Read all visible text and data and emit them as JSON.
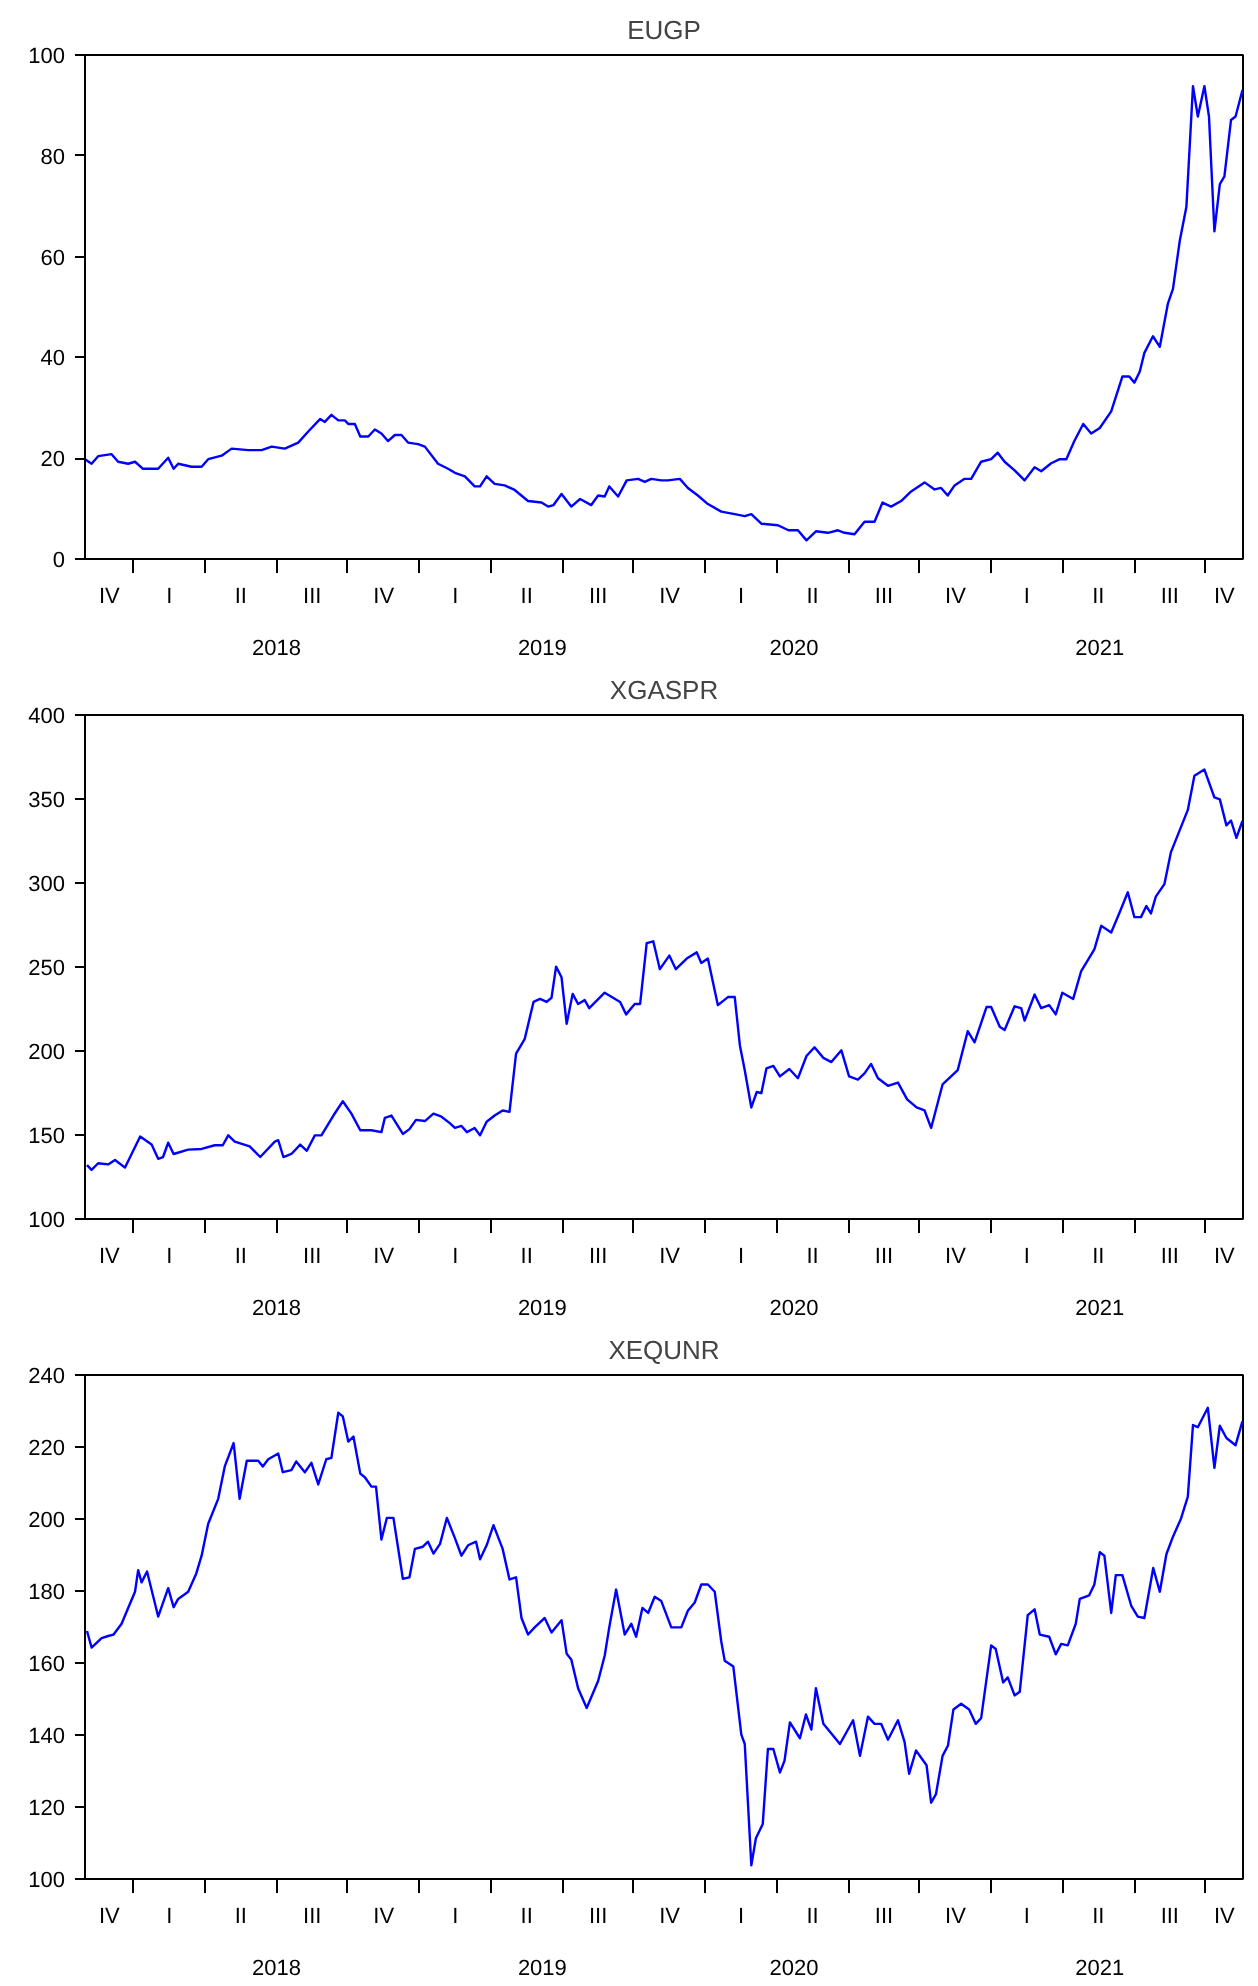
{
  "chart_data": [
    {
      "type": "line",
      "title": "EUGP",
      "color": "#0000ff",
      "grid": false,
      "line_style": "solid",
      "x": [
        2017.83,
        2017.853,
        2017.876,
        2017.923,
        2017.946,
        2017.981,
        2018.005,
        2018.033,
        2018.086,
        2018.121,
        2018.14,
        2018.156,
        2018.203,
        2018.238,
        2018.261,
        2018.308,
        2018.343,
        2018.401,
        2018.448,
        2018.483,
        2018.529,
        2018.576,
        2018.611,
        2018.653,
        2018.669,
        2018.692,
        2018.716,
        2018.739,
        2018.751,
        2018.774,
        2018.793,
        2018.821,
        2018.844,
        2018.867,
        2018.89,
        2018.914,
        2018.937,
        2018.96,
        2018.995,
        2019.019,
        2019.065,
        2019.1,
        2019.124,
        2019.159,
        2019.193,
        2019.212,
        2019.235,
        2019.263,
        2019.298,
        2019.333,
        2019.38,
        2019.427,
        2019.45,
        2019.469,
        2019.497,
        2019.531,
        2019.562,
        2019.601,
        2019.625,
        2019.648,
        2019.664,
        2019.695,
        2019.725,
        2019.765,
        2019.788,
        2019.811,
        2019.846,
        2019.869,
        2019.911,
        2019.939,
        2019.974,
        2020.009,
        2020.056,
        2020.103,
        2020.138,
        2020.161,
        2020.196,
        2020.254,
        2020.291,
        2020.324,
        2020.354,
        2020.387,
        2020.429,
        2020.464,
        2020.487,
        2020.522,
        2020.557,
        2020.592,
        2020.62,
        2020.65,
        2020.685,
        2020.72,
        2020.767,
        2020.802,
        2020.825,
        2020.848,
        2020.872,
        2020.907,
        2020.93,
        2020.965,
        2021.0,
        2021.023,
        2021.047,
        2021.082,
        2021.117,
        2021.152,
        2021.175,
        2021.21,
        2021.24,
        2021.263,
        2021.291,
        2021.322,
        2021.35,
        2021.38,
        2021.42,
        2021.459,
        2021.483,
        2021.501,
        2021.52,
        2021.536,
        2021.566,
        2021.59,
        2021.618,
        2021.636,
        2021.66,
        2021.683,
        2021.706,
        2021.723,
        2021.746,
        2021.762,
        2021.781,
        2021.8,
        2021.816,
        2021.839,
        2021.855,
        2021.879
      ],
      "values": [
        19.8,
        18.9,
        20.4,
        20.8,
        19.3,
        18.9,
        19.3,
        17.9,
        17.9,
        20.1,
        17.9,
        18.9,
        18.3,
        18.3,
        19.8,
        20.5,
        21.9,
        21.6,
        21.6,
        22.3,
        21.9,
        23.1,
        25.3,
        27.8,
        27.2,
        28.6,
        27.5,
        27.5,
        26.8,
        26.8,
        24.3,
        24.3,
        25.7,
        24.9,
        23.4,
        24.6,
        24.6,
        23.1,
        22.8,
        22.3,
        18.9,
        17.9,
        17.1,
        16.4,
        14.4,
        14.4,
        16.4,
        14.9,
        14.6,
        13.7,
        11.5,
        11.2,
        10.4,
        10.7,
        12.9,
        10.4,
        11.9,
        10.7,
        12.6,
        12.4,
        14.4,
        12.4,
        15.6,
        15.9,
        15.3,
        15.9,
        15.6,
        15.6,
        15.9,
        14.1,
        12.6,
        10.9,
        9.4,
        8.9,
        8.5,
        8.9,
        7.0,
        6.7,
        5.7,
        5.7,
        3.7,
        5.5,
        5.2,
        5.7,
        5.2,
        4.9,
        7.4,
        7.4,
        11.2,
        10.4,
        11.5,
        13.4,
        15.2,
        13.8,
        14.1,
        12.6,
        14.6,
        15.9,
        15.9,
        19.3,
        19.8,
        21.1,
        19.3,
        17.6,
        15.6,
        18.2,
        17.4,
        19.0,
        19.8,
        19.8,
        23.4,
        26.8,
        24.9,
        26.0,
        29.3,
        36.2,
        36.2,
        35.0,
        37.2,
        40.9,
        44.2,
        42.1,
        50.6,
        53.6,
        63.2,
        69.9,
        93.8,
        87.8,
        93.8,
        87.8,
        65.0,
        74.4,
        75.9,
        87.1,
        87.8,
        93.0
      ],
      "xlim": [
        2017.83,
        2021.881
      ],
      "ylim": [
        0,
        100
      ],
      "yticks": [
        0,
        20,
        40,
        60,
        80,
        100
      ],
      "xticks": [
        {
          "value": 2018.0,
          "label": null
        },
        {
          "value": 2018.25,
          "label": null
        },
        {
          "value": 2018.5,
          "label": null
        },
        {
          "value": 2018.75,
          "label": null
        },
        {
          "value": 2019.0,
          "label": null
        },
        {
          "value": 2019.25,
          "label": null
        },
        {
          "value": 2019.5,
          "label": null
        },
        {
          "value": 2019.75,
          "label": null
        },
        {
          "value": 2020.0,
          "label": null
        },
        {
          "value": 2020.25,
          "label": null
        },
        {
          "value": 2020.5,
          "label": null
        },
        {
          "value": 2020.75,
          "label": null
        },
        {
          "value": 2021.0,
          "label": null
        },
        {
          "value": 2021.25,
          "label": null
        },
        {
          "value": 2021.5,
          "label": null
        },
        {
          "value": 2021.75,
          "label": null
        },
        {
          "value": 2018.5,
          "label": "2018"
        },
        {
          "value": 2019.43,
          "label": "2019"
        },
        {
          "value": 2020.31,
          "label": "2020"
        },
        {
          "value": 2021.38,
          "label": "2021"
        }
      ],
      "annotations": [
        "IV",
        "I",
        "II",
        "III",
        "IV",
        "I",
        "II",
        "III",
        "IV",
        "I",
        "II",
        "III",
        "IV",
        "I",
        "II",
        "III",
        "IV"
      ]
    },
    {
      "type": "line",
      "title": "XGASPR",
      "color": "#0000ff",
      "grid": false,
      "line_style": "solid",
      "x": [
        2017.837,
        2017.853,
        2017.876,
        2017.911,
        2017.935,
        2017.97,
        2018.023,
        2018.063,
        2018.086,
        2018.103,
        2018.121,
        2018.14,
        2018.191,
        2018.238,
        2018.284,
        2018.312,
        2018.331,
        2018.354,
        2018.406,
        2018.443,
        2018.494,
        2018.506,
        2018.524,
        2018.552,
        2018.583,
        2018.606,
        2018.634,
        2018.657,
        2018.699,
        2018.732,
        2018.762,
        2018.793,
        2018.832,
        2018.867,
        2018.879,
        2018.902,
        2018.942,
        2018.965,
        2018.988,
        2019.019,
        2019.049,
        2019.077,
        2019.105,
        2019.124,
        2019.147,
        2019.166,
        2019.193,
        2019.212,
        2019.235,
        2019.263,
        2019.291,
        2019.315,
        2019.338,
        2019.368,
        2019.399,
        2019.422,
        2019.445,
        2019.462,
        2019.478,
        2019.497,
        2019.515,
        2019.536,
        2019.555,
        2019.578,
        2019.594,
        2019.648,
        2019.702,
        2019.723,
        2019.753,
        2019.772,
        2019.795,
        2019.818,
        2019.841,
        2019.874,
        2019.897,
        2019.935,
        2019.97,
        2019.986,
        2020.009,
        2020.044,
        2020.079,
        2020.103,
        2020.121,
        2020.138,
        2020.161,
        2020.18,
        2020.196,
        2020.214,
        2020.238,
        2020.261,
        2020.294,
        2020.324,
        2020.354,
        2020.382,
        2020.413,
        2020.441,
        2020.476,
        2020.503,
        2020.534,
        2020.557,
        2020.58,
        2020.604,
        2020.639,
        2020.674,
        2020.706,
        2020.739,
        2020.767,
        2020.79,
        2020.83,
        2020.883,
        2020.918,
        2020.942,
        2020.984,
        2021.0,
        2021.03,
        2021.047,
        2021.082,
        2021.105,
        2021.117,
        2021.152,
        2021.175,
        2021.203,
        2021.226,
        2021.249,
        2021.287,
        2021.315,
        2021.361,
        2021.385,
        2021.42,
        2021.45,
        2021.478,
        2021.501,
        2021.524,
        2021.543,
        2021.559,
        2021.576,
        2021.606,
        2021.629,
        2021.688,
        2021.711,
        2021.746,
        2021.781,
        2021.8,
        2021.823,
        2021.839,
        2021.858,
        2021.879
      ],
      "values": [
        132.1,
        129.2,
        133.2,
        132.5,
        135.1,
        130.6,
        149.1,
        144.3,
        135.8,
        136.9,
        145.4,
        138.7,
        141.3,
        141.7,
        143.9,
        143.9,
        149.8,
        146.1,
        143.2,
        136.9,
        146.1,
        146.9,
        136.9,
        138.7,
        144.3,
        140.6,
        149.8,
        149.8,
        161.6,
        170.1,
        162.7,
        152.8,
        152.8,
        151.7,
        160.2,
        161.6,
        150.6,
        153.5,
        159.0,
        158.3,
        162.7,
        160.9,
        157.2,
        154.2,
        155.4,
        151.7,
        154.2,
        149.8,
        157.9,
        161.6,
        164.6,
        163.8,
        198.5,
        207.0,
        229.2,
        231.0,
        229.2,
        231.7,
        250.2,
        243.9,
        216.2,
        234.0,
        228.0,
        230.3,
        225.5,
        234.7,
        229.2,
        221.8,
        228.0,
        228.0,
        264.2,
        265.3,
        248.7,
        256.8,
        248.7,
        255.0,
        258.7,
        252.4,
        255.0,
        227.3,
        232.1,
        232.1,
        203.3,
        188.6,
        166.4,
        175.6,
        174.9,
        189.7,
        191.1,
        184.9,
        189.3,
        183.8,
        197.0,
        202.2,
        195.9,
        193.4,
        200.4,
        184.9,
        183.0,
        186.7,
        192.3,
        183.8,
        179.3,
        181.2,
        171.2,
        166.4,
        164.6,
        154.2,
        180.1,
        188.6,
        211.8,
        205.2,
        226.2,
        226.2,
        214.4,
        212.5,
        226.6,
        225.5,
        218.1,
        233.6,
        225.5,
        227.3,
        221.8,
        234.7,
        231.0,
        247.6,
        260.5,
        274.5,
        270.5,
        282.7,
        294.5,
        279.7,
        279.7,
        286.3,
        281.9,
        291.9,
        299.3,
        318.4,
        343.5,
        363.8,
        367.5,
        350.9,
        349.8,
        334.3,
        337.2,
        326.9,
        336.9
      ],
      "xlim": [
        2017.83,
        2021.881
      ],
      "ylim": [
        100,
        400
      ],
      "yticks": [
        100,
        150,
        200,
        250,
        300,
        350,
        400
      ],
      "xticks": [
        {
          "value": 2018.0,
          "label": null
        },
        {
          "value": 2018.25,
          "label": null
        },
        {
          "value": 2018.5,
          "label": null
        },
        {
          "value": 2018.75,
          "label": null
        },
        {
          "value": 2019.0,
          "label": null
        },
        {
          "value": 2019.25,
          "label": null
        },
        {
          "value": 2019.5,
          "label": null
        },
        {
          "value": 2019.75,
          "label": null
        },
        {
          "value": 2020.0,
          "label": null
        },
        {
          "value": 2020.25,
          "label": null
        },
        {
          "value": 2020.5,
          "label": null
        },
        {
          "value": 2020.75,
          "label": null
        },
        {
          "value": 2021.0,
          "label": null
        },
        {
          "value": 2021.25,
          "label": null
        },
        {
          "value": 2021.5,
          "label": null
        },
        {
          "value": 2021.75,
          "label": null
        },
        {
          "value": 2018.5,
          "label": "2018"
        },
        {
          "value": 2019.43,
          "label": "2019"
        },
        {
          "value": 2020.31,
          "label": "2020"
        },
        {
          "value": 2021.38,
          "label": "2021"
        }
      ],
      "annotations": [
        "IV",
        "I",
        "II",
        "III",
        "IV",
        "I",
        "II",
        "III",
        "IV",
        "I",
        "II",
        "III",
        "IV",
        "I",
        "II",
        "III",
        "IV"
      ]
    },
    {
      "type": "line",
      "title": "XEQUNR",
      "color": "#0000ff",
      "grid": false,
      "line_style": "solid",
      "x": [
        2017.837,
        2017.853,
        2017.888,
        2017.911,
        2017.93,
        2017.958,
        2017.981,
        2018.005,
        2018.016,
        2018.028,
        2018.047,
        2018.086,
        2018.121,
        2018.14,
        2018.156,
        2018.191,
        2018.219,
        2018.238,
        2018.261,
        2018.296,
        2018.319,
        2018.35,
        2018.371,
        2018.396,
        2018.436,
        2018.452,
        2018.471,
        2018.506,
        2018.522,
        2018.552,
        2018.569,
        2018.599,
        2018.622,
        2018.646,
        2018.674,
        2018.692,
        2018.716,
        2018.732,
        2018.751,
        2018.769,
        2018.793,
        2018.809,
        2018.832,
        2018.848,
        2018.867,
        2018.886,
        2018.909,
        2018.942,
        2018.965,
        2018.984,
        2019.012,
        2019.03,
        2019.049,
        2019.072,
        2019.096,
        2019.124,
        2019.147,
        2019.17,
        2019.198,
        2019.212,
        2019.235,
        2019.259,
        2019.291,
        2019.315,
        2019.338,
        2019.357,
        2019.38,
        2019.403,
        2019.438,
        2019.462,
        2019.497,
        2019.515,
        2019.531,
        2019.555,
        2019.585,
        2019.625,
        2019.648,
        2019.664,
        2019.688,
        2019.718,
        2019.741,
        2019.758,
        2019.78,
        2019.8,
        2019.823,
        2019.846,
        2019.881,
        2019.916,
        2019.939,
        2019.963,
        2019.986,
        2020.009,
        2020.033,
        2020.056,
        2020.068,
        2020.098,
        2020.126,
        2020.138,
        2020.161,
        2020.177,
        2020.201,
        2020.219,
        2020.238,
        2020.261,
        2020.277,
        2020.296,
        2020.331,
        2020.352,
        2020.371,
        2020.387,
        2020.413,
        2020.471,
        2020.517,
        2020.541,
        2020.569,
        2020.592,
        2020.615,
        2020.639,
        2020.674,
        2020.697,
        2020.713,
        2020.737,
        2020.774,
        2020.79,
        2020.807,
        2020.83,
        2020.849,
        2020.868,
        2020.895,
        2020.923,
        2020.946,
        2020.965,
        2021.0,
        2021.016,
        2021.042,
        2021.058,
        2021.082,
        2021.1,
        2021.128,
        2021.152,
        2021.17,
        2021.203,
        2021.226,
        2021.245,
        2021.268,
        2021.296,
        2021.31,
        2021.343,
        2021.361,
        2021.38,
        2021.396,
        2021.42,
        2021.436,
        2021.459,
        2021.49,
        2021.513,
        2021.536,
        2021.567,
        2021.59,
        2021.613,
        2021.636,
        2021.664,
        2021.688,
        2021.706,
        2021.723,
        2021.758,
        2021.781,
        2021.8,
        2021.823,
        2021.855,
        2021.879
      ],
      "values": [
        168.9,
        164.3,
        166.9,
        167.5,
        167.9,
        170.9,
        175.3,
        179.8,
        185.8,
        182.4,
        185.4,
        172.9,
        180.8,
        175.5,
        177.8,
        179.8,
        184.8,
        189.8,
        198.7,
        205.6,
        214.6,
        221.1,
        205.6,
        216.2,
        216.2,
        214.6,
        216.6,
        218.2,
        213.0,
        213.6,
        216.0,
        213.0,
        215.6,
        209.6,
        216.6,
        217.0,
        229.5,
        228.5,
        221.5,
        222.9,
        212.6,
        211.6,
        209.0,
        209.0,
        194.3,
        200.3,
        200.3,
        183.4,
        183.8,
        191.7,
        192.3,
        193.7,
        190.4,
        193.1,
        200.3,
        194.7,
        189.8,
        192.7,
        193.7,
        188.8,
        192.7,
        198.3,
        191.7,
        183.2,
        183.8,
        172.5,
        167.9,
        169.9,
        172.5,
        168.5,
        171.9,
        162.6,
        161.0,
        153.0,
        147.5,
        155.0,
        162.0,
        169.9,
        180.4,
        167.9,
        170.9,
        167.3,
        175.3,
        173.9,
        178.4,
        177.2,
        169.9,
        169.9,
        174.5,
        176.8,
        181.8,
        181.8,
        179.8,
        165.9,
        160.6,
        159.0,
        140.1,
        137.5,
        103.8,
        111.3,
        115.3,
        136.1,
        136.1,
        129.6,
        132.8,
        143.5,
        139.1,
        145.7,
        141.5,
        153.0,
        143.1,
        137.5,
        144.1,
        134.2,
        145.1,
        143.1,
        143.1,
        138.7,
        144.1,
        138.1,
        129.2,
        135.7,
        131.6,
        121.2,
        123.6,
        134.2,
        137.1,
        147.1,
        148.7,
        147.1,
        143.1,
        144.7,
        164.9,
        163.9,
        154.6,
        156.0,
        151.0,
        152.0,
        173.3,
        174.9,
        167.9,
        167.3,
        162.4,
        165.3,
        164.9,
        170.9,
        177.8,
        178.8,
        181.8,
        190.8,
        189.8,
        173.9,
        184.4,
        184.4,
        175.9,
        172.9,
        172.5,
        186.4,
        179.8,
        190.2,
        195.1,
        200.1,
        206.2,
        226.1,
        225.5,
        230.9,
        214.2,
        225.9,
        222.5,
        220.5,
        227.1
      ],
      "xlim": [
        2017.83,
        2021.881
      ],
      "ylim": [
        100,
        240
      ],
      "yticks": [
        100,
        120,
        140,
        160,
        180,
        200,
        220,
        240
      ],
      "xticks": [
        {
          "value": 2018.0,
          "label": null
        },
        {
          "value": 2018.25,
          "label": null
        },
        {
          "value": 2018.5,
          "label": null
        },
        {
          "value": 2018.75,
          "label": null
        },
        {
          "value": 2019.0,
          "label": null
        },
        {
          "value": 2019.25,
          "label": null
        },
        {
          "value": 2019.5,
          "label": null
        },
        {
          "value": 2019.75,
          "label": null
        },
        {
          "value": 2020.0,
          "label": null
        },
        {
          "value": 2020.25,
          "label": null
        },
        {
          "value": 2020.5,
          "label": null
        },
        {
          "value": 2020.75,
          "label": null
        },
        {
          "value": 2021.0,
          "label": null
        },
        {
          "value": 2021.25,
          "label": null
        },
        {
          "value": 2021.5,
          "label": null
        },
        {
          "value": 2021.75,
          "label": null
        },
        {
          "value": 2018.5,
          "label": "2018"
        },
        {
          "value": 2019.43,
          "label": "2019"
        },
        {
          "value": 2020.31,
          "label": "2020"
        },
        {
          "value": 2021.38,
          "label": "2021"
        }
      ],
      "annotations": [
        "IV",
        "I",
        "II",
        "III",
        "IV",
        "I",
        "II",
        "III",
        "IV",
        "I",
        "II",
        "III",
        "IV",
        "I",
        "II",
        "III",
        "IV"
      ]
    }
  ]
}
